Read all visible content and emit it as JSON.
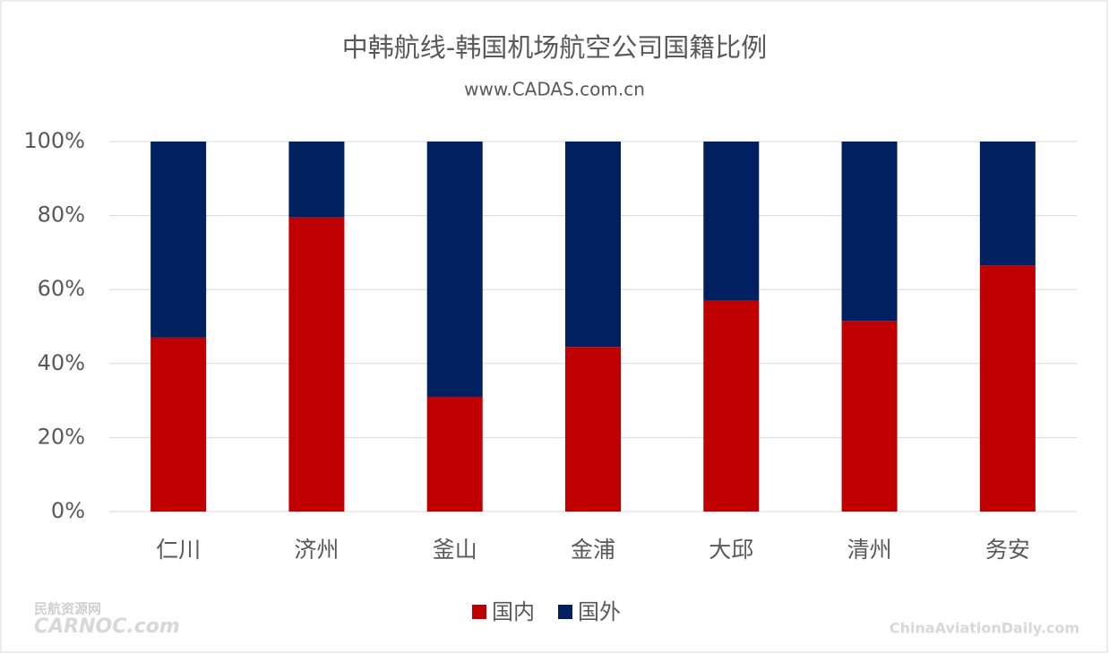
{
  "chart_data": {
    "type": "stacked_bar",
    "title": "中韩航线-韩国机场航空公司国籍比例",
    "subtitle": "www.CADAS.com.cn",
    "categories": [
      "仁川",
      "济州",
      "釜山",
      "金浦",
      "大邱",
      "清州",
      "务安"
    ],
    "series": [
      {
        "name": "国内",
        "color": "#c00000",
        "values": [
          47,
          79.5,
          31,
          44.5,
          57,
          51.5,
          66.5
        ]
      },
      {
        "name": "国外",
        "color": "#002060",
        "values": [
          53,
          20.5,
          69,
          55.5,
          43,
          48.5,
          33.5
        ]
      }
    ],
    "ylim": [
      0,
      100
    ],
    "yticks": [
      {
        "value": 0,
        "label": "0%"
      },
      {
        "value": 20,
        "label": "20%"
      },
      {
        "value": 40,
        "label": "40%"
      },
      {
        "value": 60,
        "label": "60%"
      },
      {
        "value": 80,
        "label": "80%"
      },
      {
        "value": 100,
        "label": "100%"
      }
    ],
    "grid": true,
    "legend": "bottom",
    "watermarks": [
      "民航资源网",
      "CARNOC.com",
      "ChinaAviationDaily.com"
    ]
  }
}
